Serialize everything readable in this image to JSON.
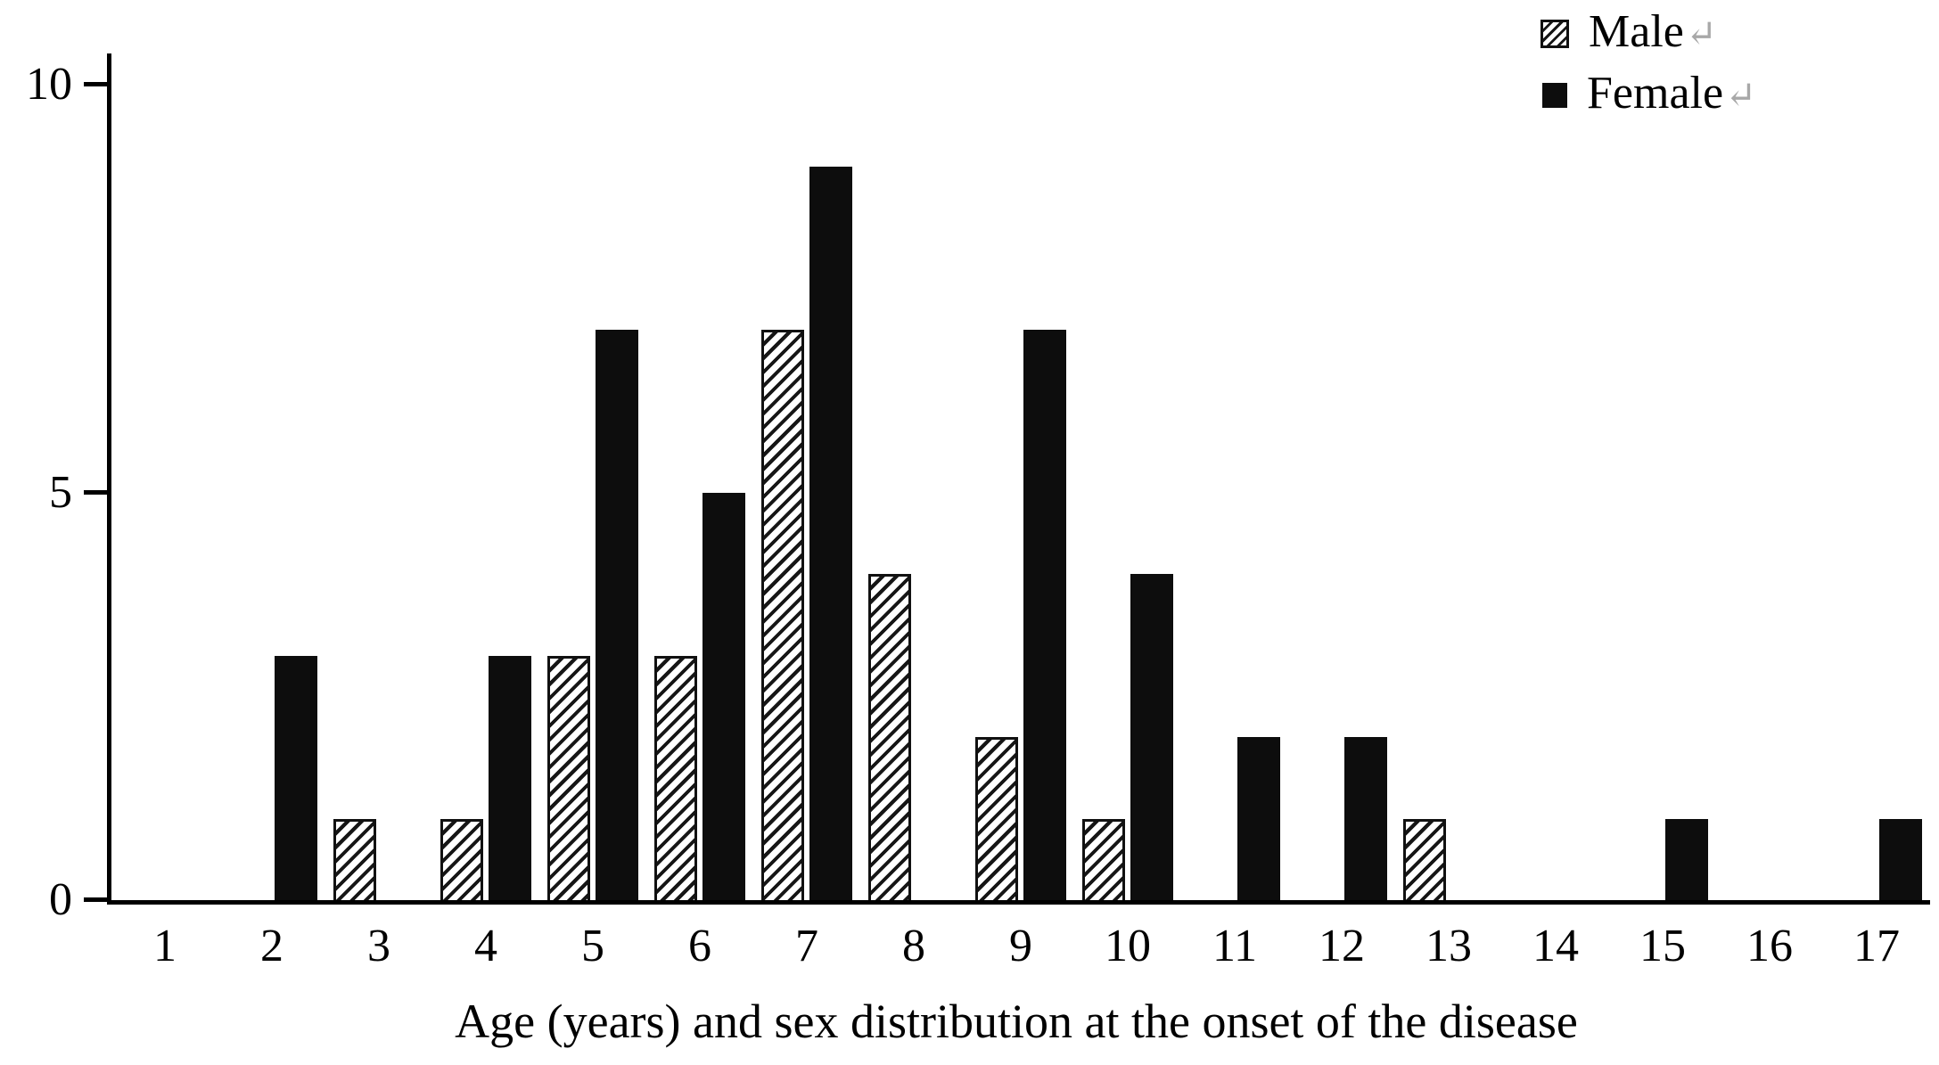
{
  "chart_data": {
    "type": "bar",
    "title": "",
    "xlabel": "Age (years) and sex distribution at the onset of the disease",
    "ylabel": "",
    "categories": [
      "1",
      "2",
      "3",
      "4",
      "5",
      "6",
      "7",
      "8",
      "9",
      "10",
      "11",
      "12",
      "13",
      "14",
      "15",
      "16",
      "17"
    ],
    "series": [
      {
        "name": "Male",
        "style": "hatched",
        "values": [
          0,
          0,
          1,
          1,
          3,
          3,
          7,
          4,
          2,
          1,
          0,
          0,
          1,
          0,
          0,
          0,
          0
        ]
      },
      {
        "name": "Female",
        "style": "solid",
        "values": [
          0,
          3,
          0,
          3,
          7,
          5,
          9,
          0,
          7,
          4,
          2,
          2,
          0,
          0,
          1,
          0,
          1
        ]
      }
    ],
    "ylim": [
      0,
      10
    ],
    "yticks": [
      0,
      5,
      10
    ],
    "grid": false,
    "legend_position": "top-right",
    "legend_return_mark": "↵",
    "colors": {
      "female_fill": "#0d0d0d",
      "male_fill": "hatched-black-on-white",
      "axis": "#000000",
      "background": "#ffffff"
    }
  }
}
